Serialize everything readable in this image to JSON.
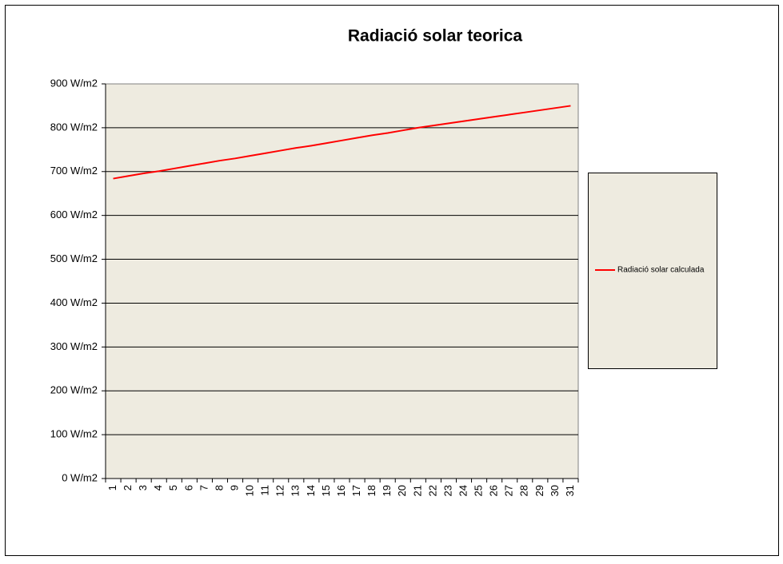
{
  "chart_data": {
    "type": "line",
    "title": "Radiació solar teorica",
    "categories": [
      "1",
      "2",
      "3",
      "4",
      "5",
      "6",
      "7",
      "8",
      "9",
      "10",
      "11",
      "12",
      "13",
      "14",
      "15",
      "16",
      "17",
      "18",
      "19",
      "20",
      "21",
      "22",
      "23",
      "24",
      "25",
      "26",
      "27",
      "28",
      "29",
      "30",
      "31"
    ],
    "series": [
      {
        "name": "Radiació solar calculada",
        "color": "#ff0000",
        "values": [
          684,
          690,
          696,
          701,
          707,
          713,
          719,
          725,
          730,
          736,
          742,
          748,
          754,
          759,
          765,
          771,
          777,
          783,
          788,
          794,
          800,
          805,
          810,
          815,
          820,
          825,
          830,
          835,
          840,
          845,
          850
        ]
      }
    ],
    "ylim": [
      0,
      900
    ],
    "yticks": [
      {
        "value": 0,
        "label": "0 W/m2"
      },
      {
        "value": 100,
        "label": "100 W/m2"
      },
      {
        "value": 200,
        "label": "200 W/m2"
      },
      {
        "value": 300,
        "label": "300 W/m2"
      },
      {
        "value": 400,
        "label": "400 W/m2"
      },
      {
        "value": 500,
        "label": "500 W/m2"
      },
      {
        "value": 600,
        "label": "600 W/m2"
      },
      {
        "value": 700,
        "label": "700 W/m2"
      },
      {
        "value": 800,
        "label": "800 W/m2"
      },
      {
        "value": 900,
        "label": "900 W/m2"
      }
    ],
    "grid": true,
    "legend": "right"
  }
}
